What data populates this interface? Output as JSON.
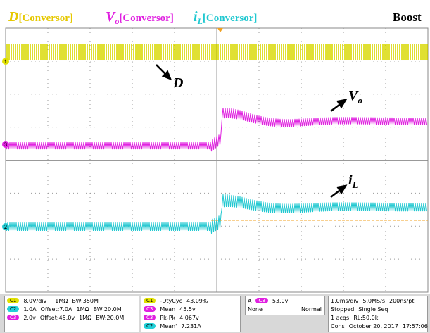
{
  "header": {
    "d": {
      "symbol": "D",
      "tag": "[Conversor]"
    },
    "vo": {
      "symbol": "V",
      "sub": "o",
      "tag": "[Conversor]"
    },
    "il": {
      "symbol": "i",
      "sub": "L",
      "tag": "[Conversor]"
    },
    "title": "Boost"
  },
  "annotations": {
    "d": "D",
    "vo": {
      "symbol": "V",
      "sub": "o"
    },
    "il": {
      "symbol": "i",
      "sub": "L"
    }
  },
  "markers": {
    "ch1": "1",
    "ch3": "3",
    "ch2": "2"
  },
  "status": {
    "channels": [
      {
        "badge": "C1",
        "scale": "8.0V/div",
        "offset": "",
        "imp": "1MΩ",
        "bw": "BW:350M"
      },
      {
        "badge": "C2",
        "scale": "1.0A",
        "offset": "Offset:7.0A",
        "imp": "1MΩ",
        "bw": "BW:20.0M"
      },
      {
        "badge": "C3",
        "scale": "2.0v",
        "offset": "Offset:45.0v",
        "imp": "1MΩ",
        "bw": "BW:20.0M"
      }
    ],
    "measurements": [
      {
        "badge": "C1",
        "name": "-DtyCyc",
        "value": "43.09%"
      },
      {
        "badge": "C3",
        "name": "Mean",
        "value": "45.5v"
      },
      {
        "badge": "C3",
        "name": "Pk-Pk",
        "value": "4.067v"
      },
      {
        "badge": "C2",
        "name": "Mean'",
        "value": "7.231A"
      }
    ],
    "trigger": {
      "mode": "A",
      "badge": "C3",
      "level": "53.0v",
      "coupling": "None",
      "type": "Normal"
    },
    "acquisition": {
      "timebase": "1.0ms/div",
      "rate": "5.0MS/s",
      "resolution": "200ns/pt",
      "state": "Stopped",
      "seq": "Single Seq",
      "acqs": "1 acqs",
      "rl": "RL:50.0k",
      "cons": "Cons",
      "date": "October 20, 2017",
      "time": "17:57:06"
    }
  }
}
